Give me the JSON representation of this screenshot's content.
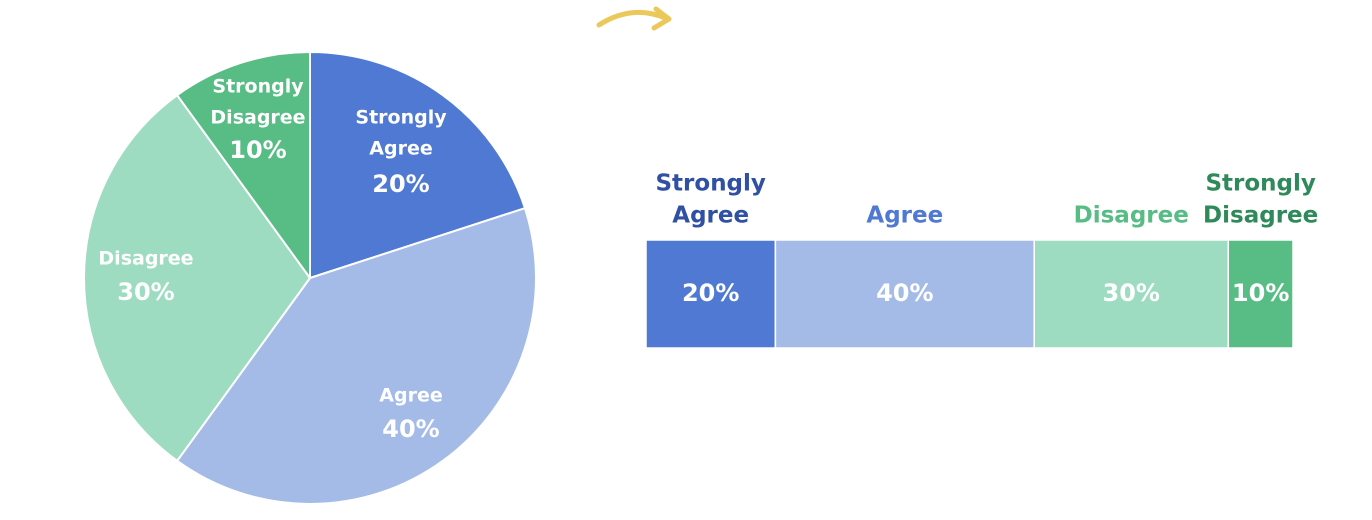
{
  "colors": {
    "strongly_agree": "#4F79D2",
    "agree": "#A4BBE8",
    "disagree": "#9EDCC1",
    "strongly_disagree": "#58BC85",
    "strongly_agree_heading": "#2F50A3",
    "agree_heading": "#4F79D2",
    "disagree_heading": "#58BC85",
    "strongly_disagree_heading": "#2E8A5A",
    "arrow": "#EBC85A",
    "slice_text": "#ffffff"
  },
  "decoration": {
    "arrow_icon": "curved-arrow-right-icon"
  },
  "chart_data": [
    {
      "type": "pie",
      "categories": [
        "Strongly Agree",
        "Agree",
        "Disagree",
        "Strongly Disagree"
      ],
      "values": [
        20,
        40,
        30,
        10
      ],
      "slices": [
        {
          "label_lines": [
            "Strongly",
            "Agree"
          ],
          "value_label": "20%"
        },
        {
          "label_lines": [
            "Agree"
          ],
          "value_label": "40%"
        },
        {
          "label_lines": [
            "Disagree"
          ],
          "value_label": "30%"
        },
        {
          "label_lines": [
            "Strongly",
            "Disagree"
          ],
          "value_label": "10%"
        }
      ]
    },
    {
      "type": "bar",
      "stacked": true,
      "orientation": "horizontal",
      "categories": [
        "Strongly Agree",
        "Agree",
        "Disagree",
        "Strongly Disagree"
      ],
      "values": [
        20,
        40,
        30,
        10
      ],
      "segments": [
        {
          "heading_lines": [
            "Strongly",
            "Agree"
          ],
          "value_label": "20%"
        },
        {
          "heading_lines": [
            "Agree"
          ],
          "value_label": "40%"
        },
        {
          "heading_lines": [
            "Disagree"
          ],
          "value_label": "30%"
        },
        {
          "heading_lines": [
            "Strongly",
            "Disagree"
          ],
          "value_label": "10%"
        }
      ]
    }
  ]
}
